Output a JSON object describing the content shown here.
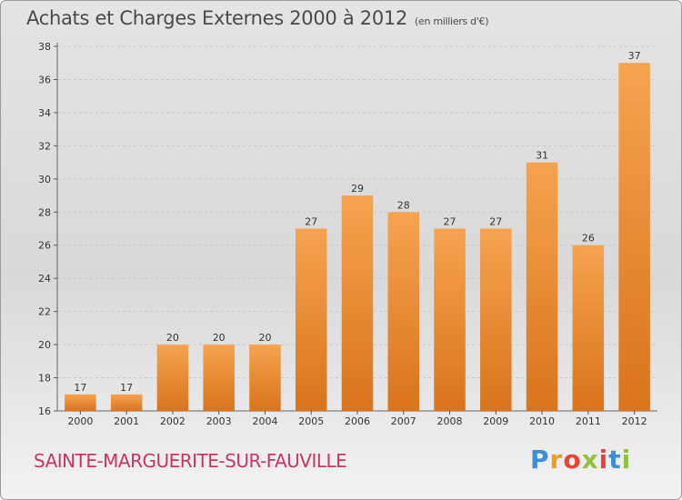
{
  "header": {
    "title": "Achats et Charges Externes 2000 à 2012",
    "unit": "(en milliers d'€)"
  },
  "footer": {
    "commune": "SAINTE-MARGUERITE-SUR-FAUVILLE",
    "logo_letters": [
      "P",
      "r",
      "o",
      "x",
      "i",
      "t",
      "i"
    ],
    "logo_colors": [
      "#3b8fd6",
      "#f29a1f",
      "#e8443a",
      "#8fc33b",
      "#e8443a",
      "#3b8fd6",
      "#8fc33b"
    ]
  },
  "colors": {
    "bar_light": "#f6a34f",
    "bar_dark": "#d9741c",
    "grid": "#c8c8c8",
    "commune_text": "#c8346a"
  },
  "chart_data": {
    "type": "bar",
    "title": "Achats et Charges Externes 2000 à 2012",
    "ylabel": "",
    "xlabel": "",
    "categories": [
      "2000",
      "2001",
      "2002",
      "2003",
      "2004",
      "2005",
      "2006",
      "2007",
      "2008",
      "2009",
      "2010",
      "2011",
      "2012"
    ],
    "values": [
      17,
      17,
      20,
      20,
      20,
      27,
      29,
      28,
      27,
      27,
      31,
      26,
      37
    ],
    "data_labels": [
      "17",
      "17",
      "20",
      "20",
      "20",
      "27",
      "29",
      "28",
      "27",
      "27",
      "31",
      "26",
      "37"
    ],
    "ylim": [
      16,
      38
    ],
    "yticks": [
      16,
      18,
      20,
      22,
      24,
      26,
      28,
      30,
      32,
      34,
      36,
      38
    ],
    "grid": true,
    "legend": "none"
  }
}
